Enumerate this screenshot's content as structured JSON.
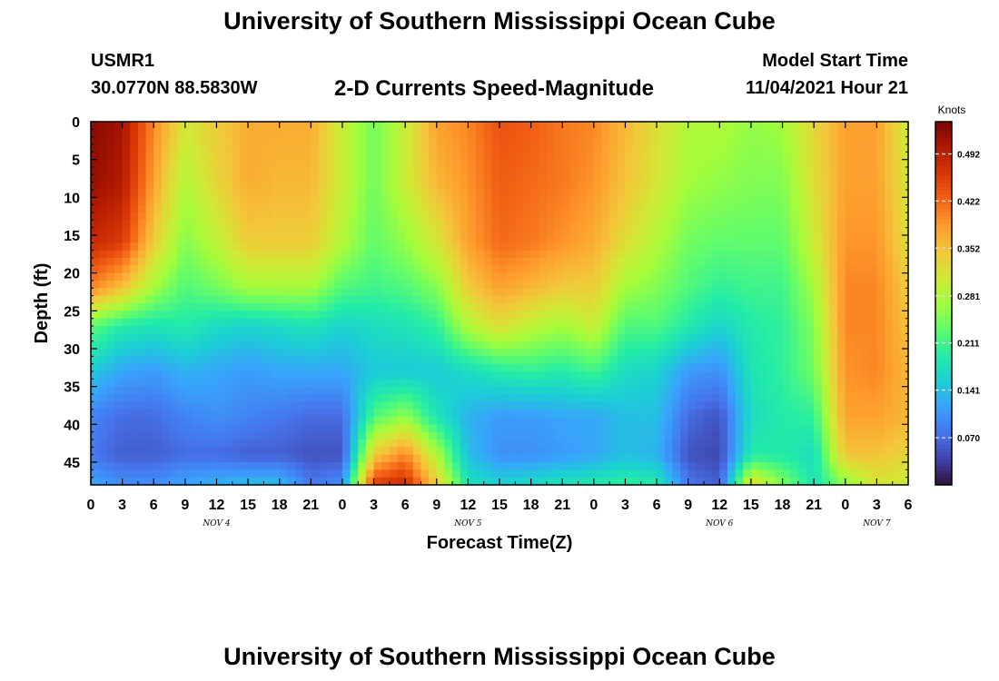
{
  "header": {
    "title": "University of Southern Mississippi Ocean Cube",
    "station": "USMR1",
    "coordinates": "30.0770N  88.5830W",
    "subtitle": "2-D Currents Speed-Magnitude",
    "model_start_label": "Model Start Time",
    "model_start_value": "11/04/2021 Hour 21"
  },
  "footer": {
    "title": "University of Southern Mississippi Ocean Cube"
  },
  "chart_data": {
    "type": "heatmap",
    "xlabel": "Forecast Time(Z)",
    "ylabel": "Depth (ft)",
    "x_tick_labels": [
      "0",
      "3",
      "6",
      "9",
      "12",
      "15",
      "18",
      "21",
      "0",
      "3",
      "6",
      "9",
      "12",
      "15",
      "18",
      "21",
      "0",
      "3",
      "6",
      "9",
      "12",
      "15",
      "18",
      "21",
      "0",
      "3",
      "6"
    ],
    "x_date_labels": [
      {
        "label": "NOV 4",
        "at_tick": 4
      },
      {
        "label": "NOV 5",
        "at_tick": 12
      },
      {
        "label": "NOV 6",
        "at_tick": 20
      },
      {
        "label": "NOV 7",
        "at_tick": 25
      }
    ],
    "y_ticks": [
      0,
      5,
      10,
      15,
      20,
      25,
      30,
      35,
      40,
      45
    ],
    "ylim": [
      0,
      48
    ],
    "colorbar": {
      "label": "Knots",
      "range": [
        0.0,
        0.54
      ],
      "ticks": [
        0.07,
        0.141,
        0.211,
        0.281,
        0.352,
        0.422,
        0.492
      ],
      "tick_labels": [
        "0.070",
        "0.141",
        "0.211",
        "0.281",
        "0.352",
        "0.422",
        "0.492"
      ]
    },
    "colormap": [
      "#30123b",
      "#4145ab",
      "#4675ed",
      "#39a2fc",
      "#1bcfd4",
      "#24eca6",
      "#61fc6c",
      "#a4fc3b",
      "#d1e834",
      "#f3c63a",
      "#fe9b2d",
      "#f36315",
      "#d93806",
      "#b11901",
      "#7a0402"
    ],
    "depths_ft": [
      0,
      8,
      16,
      22,
      27,
      33,
      39,
      44,
      48
    ],
    "times_hr": [
      0,
      3,
      6,
      9,
      12,
      15,
      18,
      21,
      24,
      27,
      30,
      33,
      36,
      39,
      42,
      45,
      48,
      51,
      54,
      57,
      60,
      63,
      66,
      69,
      72,
      75,
      78
    ],
    "speed_knots": [
      [
        0.53,
        0.51,
        0.4,
        0.31,
        0.34,
        0.37,
        0.37,
        0.37,
        0.3,
        0.24,
        0.3,
        0.38,
        0.4,
        0.44,
        0.43,
        0.41,
        0.4,
        0.36,
        0.32,
        0.28,
        0.28,
        0.26,
        0.27,
        0.33,
        0.38,
        0.38,
        0.3
      ],
      [
        0.52,
        0.5,
        0.38,
        0.28,
        0.33,
        0.37,
        0.36,
        0.36,
        0.3,
        0.24,
        0.3,
        0.36,
        0.39,
        0.43,
        0.42,
        0.41,
        0.39,
        0.35,
        0.31,
        0.27,
        0.26,
        0.25,
        0.25,
        0.32,
        0.38,
        0.38,
        0.31
      ],
      [
        0.48,
        0.46,
        0.34,
        0.25,
        0.29,
        0.34,
        0.34,
        0.34,
        0.28,
        0.23,
        0.26,
        0.31,
        0.38,
        0.42,
        0.41,
        0.39,
        0.37,
        0.32,
        0.28,
        0.24,
        0.23,
        0.23,
        0.23,
        0.3,
        0.39,
        0.39,
        0.32
      ],
      [
        0.4,
        0.35,
        0.27,
        0.22,
        0.24,
        0.27,
        0.27,
        0.27,
        0.22,
        0.21,
        0.22,
        0.25,
        0.34,
        0.38,
        0.36,
        0.34,
        0.34,
        0.27,
        0.25,
        0.22,
        0.2,
        0.21,
        0.21,
        0.27,
        0.4,
        0.4,
        0.34
      ],
      [
        0.23,
        0.19,
        0.18,
        0.19,
        0.17,
        0.16,
        0.17,
        0.18,
        0.16,
        0.17,
        0.18,
        0.2,
        0.28,
        0.32,
        0.29,
        0.27,
        0.3,
        0.22,
        0.22,
        0.19,
        0.16,
        0.19,
        0.2,
        0.25,
        0.4,
        0.4,
        0.35
      ],
      [
        0.15,
        0.12,
        0.11,
        0.13,
        0.12,
        0.11,
        0.12,
        0.12,
        0.12,
        0.15,
        0.15,
        0.15,
        0.17,
        0.19,
        0.2,
        0.19,
        0.21,
        0.17,
        0.16,
        0.11,
        0.1,
        0.18,
        0.2,
        0.24,
        0.39,
        0.4,
        0.36
      ],
      [
        0.09,
        0.07,
        0.07,
        0.09,
        0.1,
        0.09,
        0.08,
        0.07,
        0.07,
        0.22,
        0.26,
        0.18,
        0.13,
        0.11,
        0.11,
        0.12,
        0.12,
        0.14,
        0.14,
        0.07,
        0.05,
        0.17,
        0.19,
        0.2,
        0.38,
        0.38,
        0.36
      ],
      [
        0.08,
        0.06,
        0.06,
        0.07,
        0.07,
        0.06,
        0.06,
        0.05,
        0.05,
        0.34,
        0.4,
        0.28,
        0.14,
        0.1,
        0.1,
        0.11,
        0.12,
        0.14,
        0.13,
        0.05,
        0.04,
        0.19,
        0.19,
        0.17,
        0.35,
        0.35,
        0.33
      ],
      [
        0.12,
        0.1,
        0.1,
        0.12,
        0.13,
        0.14,
        0.14,
        0.08,
        0.1,
        0.46,
        0.48,
        0.34,
        0.18,
        0.16,
        0.17,
        0.18,
        0.19,
        0.2,
        0.19,
        0.08,
        0.06,
        0.33,
        0.25,
        0.18,
        0.25,
        0.31,
        0.3
      ]
    ]
  }
}
